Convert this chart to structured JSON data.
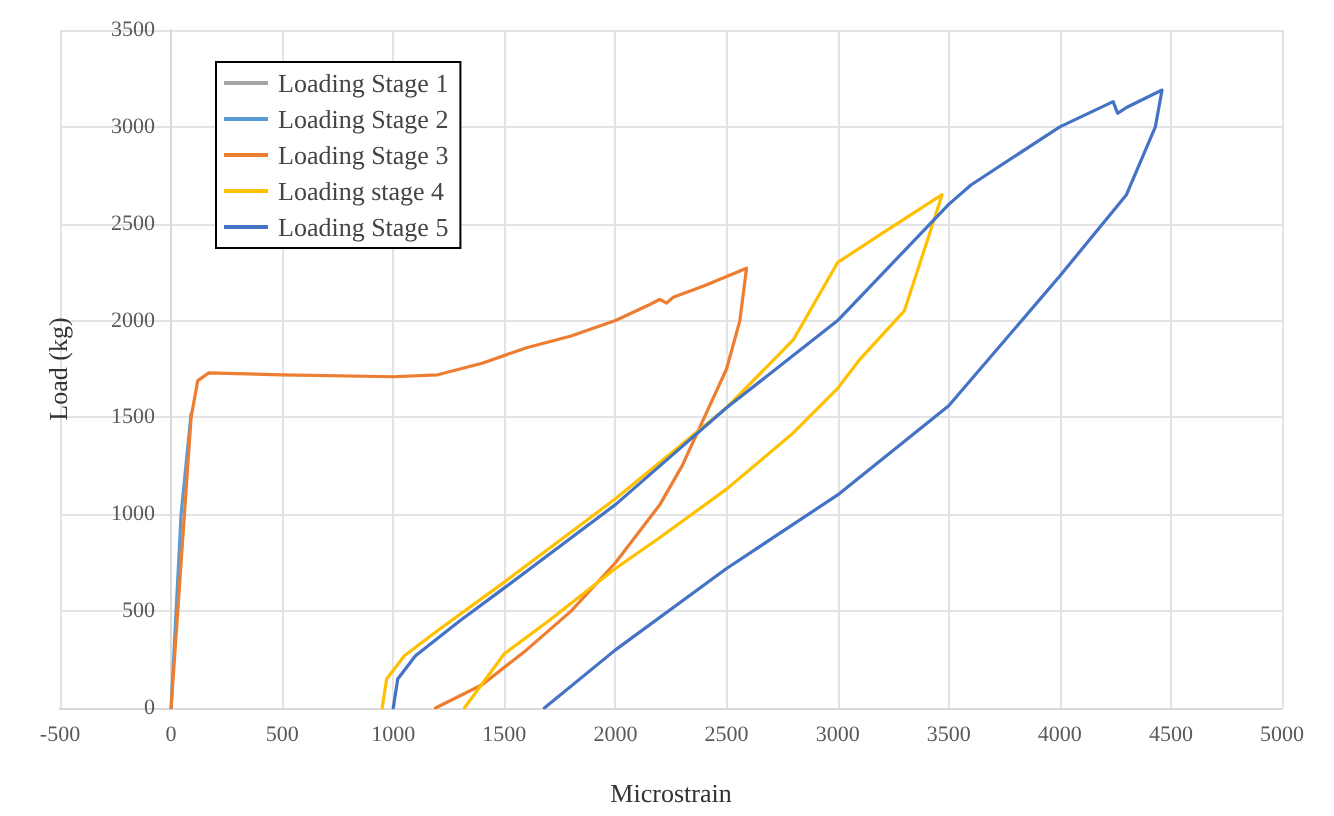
{
  "chart_data": {
    "type": "line",
    "xlabel": "Microstrain",
    "ylabel": "Load (kg)",
    "xlim": [
      -500,
      5000
    ],
    "xticks": [
      -500,
      0,
      500,
      1000,
      1500,
      2000,
      2500,
      3000,
      3500,
      4000,
      4500,
      5000
    ],
    "ylim": [
      0,
      3500
    ],
    "yticks": [
      0,
      500,
      1000,
      1500,
      2000,
      2500,
      3000,
      3500
    ],
    "grid": true,
    "legend": "top left",
    "marker": "none",
    "line_style": "solid",
    "series": [
      {
        "name": "Loading Stage 1",
        "color": "#a5a5a5"
      },
      {
        "name": "Loading Stage 2",
        "color": "#5b9bd5",
        "x": [
          0,
          45,
          90
        ],
        "values": [
          0,
          1000,
          1520
        ]
      },
      {
        "name": "Loading Stage 3",
        "color": "#ed7d31",
        "x": [
          0,
          90,
          120,
          170,
          500,
          1000,
          1200,
          1400,
          1600,
          1800,
          2000,
          2150,
          2200,
          2230,
          2260,
          2400,
          2590,
          2560,
          2500,
          2400,
          2300,
          2200,
          2000,
          1800,
          1600,
          1400,
          1190
        ],
        "values": [
          0,
          1500,
          1690,
          1730,
          1720,
          1710,
          1720,
          1780,
          1860,
          1920,
          2000,
          2080,
          2110,
          2090,
          2120,
          2180,
          2270,
          2000,
          1750,
          1500,
          1250,
          1050,
          750,
          500,
          300,
          120,
          0
        ]
      },
      {
        "name": "Loading stage 4",
        "color": "#ffc000",
        "x": [
          950,
          970,
          1050,
          1200,
          1500,
          2000,
          2500,
          2800,
          3000,
          3200,
          3470,
          3400,
          3300,
          3100,
          3000,
          2800,
          2500,
          2200,
          2000,
          1700,
          1500,
          1320
        ],
        "values": [
          0,
          150,
          270,
          400,
          650,
          1080,
          1550,
          1900,
          2300,
          2450,
          2650,
          2400,
          2050,
          1800,
          1650,
          1420,
          1130,
          880,
          720,
          450,
          280,
          0
        ]
      },
      {
        "name": "Loading Stage 5",
        "color": "#4472c4",
        "x": [
          1000,
          1020,
          1100,
          1300,
          1500,
          2000,
          2200,
          2500,
          3000,
          3500,
          3600,
          4000,
          4240,
          4260,
          4300,
          4460,
          4430,
          4300,
          4000,
          3500,
          3000,
          2500,
          2000,
          1680
        ],
        "values": [
          0,
          150,
          270,
          450,
          620,
          1050,
          1250,
          1550,
          2000,
          2600,
          2700,
          3000,
          3130,
          3070,
          3100,
          3190,
          3000,
          2650,
          2230,
          1560,
          1100,
          720,
          300,
          0
        ]
      }
    ]
  }
}
